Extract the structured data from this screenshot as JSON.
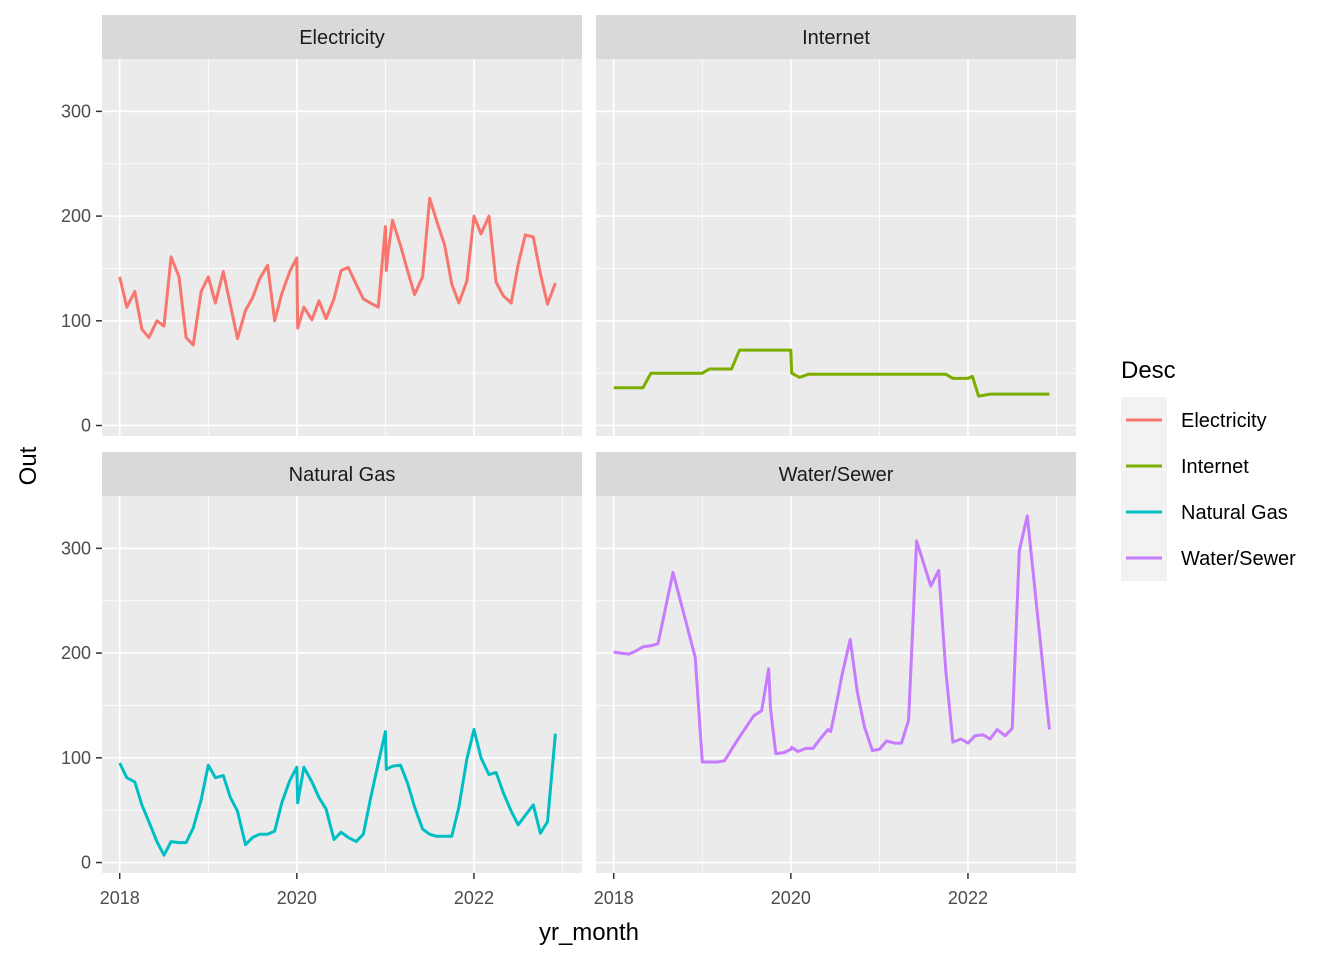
{
  "chart_data": {
    "type": "line",
    "xlabel": "yr_month",
    "ylabel": "Out",
    "legend_title": "Desc",
    "legend_position": "right",
    "grid": true,
    "xlim": [
      2017.8,
      2023.22
    ],
    "ylim": [
      -10,
      350
    ],
    "x_ticks": [
      2018,
      2020,
      2022
    ],
    "x_tick_labels": [
      "2018",
      "2020",
      "2022"
    ],
    "y_ticks": [
      0,
      100,
      200,
      300
    ],
    "y_tick_labels": [
      "0",
      "100",
      "200",
      "300"
    ],
    "colors": {
      "panel_bg": "#ebebeb",
      "strip_bg": "#d9d9d9",
      "grid": "#ffffff",
      "tick": "#333333"
    },
    "series": [
      {
        "name": "Electricity",
        "color": "#f8766d",
        "x": [
          2018.0,
          2018.08,
          2018.17,
          2018.25,
          2018.33,
          2018.42,
          2018.5,
          2018.58,
          2018.67,
          2018.75,
          2018.83,
          2018.92,
          2019.0,
          2019.08,
          2019.17,
          2019.25,
          2019.33,
          2019.42,
          2019.5,
          2019.58,
          2019.67,
          2019.75,
          2019.83,
          2019.92,
          2020.0,
          2020.01,
          2020.08,
          2020.17,
          2020.25,
          2020.33,
          2020.42,
          2020.5,
          2020.58,
          2020.67,
          2020.75,
          2020.83,
          2020.92,
          2021.0,
          2021.01,
          2021.03,
          2021.08,
          2021.17,
          2021.25,
          2021.33,
          2021.42,
          2021.5,
          2021.58,
          2021.67,
          2021.75,
          2021.83,
          2021.92,
          2022.0,
          2022.08,
          2022.17,
          2022.25,
          2022.33,
          2022.42,
          2022.5,
          2022.58,
          2022.67,
          2022.75,
          2022.83,
          2022.92
        ],
        "y": [
          142,
          113,
          128,
          92,
          84,
          100,
          95,
          161,
          142,
          84,
          77,
          128,
          142,
          117,
          147,
          115,
          83,
          110,
          122,
          140,
          153,
          100,
          126,
          147,
          160,
          93,
          113,
          101,
          119,
          102,
          121,
          148,
          151,
          135,
          121,
          117,
          113,
          190,
          148,
          165,
          196,
          172,
          148,
          125,
          142,
          217,
          195,
          172,
          135,
          117,
          138,
          200,
          183,
          200,
          137,
          124,
          117,
          154,
          182,
          180,
          145,
          116,
          136
        ]
      },
      {
        "name": "Internet",
        "color": "#7cae00",
        "x": [
          2018.0,
          2018.33,
          2018.42,
          2019.0,
          2019.08,
          2019.33,
          2019.42,
          2019.5,
          2020.0,
          2020.01,
          2020.1,
          2020.2,
          2021.75,
          2021.83,
          2022.0,
          2022.05,
          2022.12,
          2022.25,
          2022.92
        ],
        "y": [
          36,
          36,
          50,
          50,
          54,
          54,
          72,
          72,
          72,
          50,
          46,
          49,
          49,
          45,
          45,
          47,
          28,
          30,
          30
        ]
      },
      {
        "name": "Natural Gas",
        "color": "#00bfc4",
        "x": [
          2018.0,
          2018.08,
          2018.17,
          2018.25,
          2018.33,
          2018.42,
          2018.5,
          2018.58,
          2018.67,
          2018.75,
          2018.83,
          2018.92,
          2019.0,
          2019.08,
          2019.17,
          2019.25,
          2019.33,
          2019.42,
          2019.5,
          2019.58,
          2019.67,
          2019.75,
          2019.83,
          2019.92,
          2020.0,
          2020.01,
          2020.08,
          2020.17,
          2020.25,
          2020.33,
          2020.42,
          2020.5,
          2020.58,
          2020.67,
          2020.75,
          2020.83,
          2020.92,
          2021.0,
          2021.01,
          2021.08,
          2021.17,
          2021.25,
          2021.33,
          2021.42,
          2021.5,
          2021.58,
          2021.67,
          2021.75,
          2021.83,
          2021.92,
          2022.0,
          2022.08,
          2022.17,
          2022.25,
          2022.33,
          2022.42,
          2022.5,
          2022.58,
          2022.67,
          2022.75,
          2022.83,
          2022.92
        ],
        "y": [
          95,
          81,
          77,
          55,
          39,
          20,
          7,
          20,
          19,
          19,
          33,
          60,
          93,
          81,
          83,
          62,
          49,
          17,
          24,
          27,
          27,
          30,
          57,
          78,
          91,
          57,
          91,
          77,
          62,
          51,
          22,
          29,
          24,
          20,
          27,
          60,
          95,
          125,
          89,
          92,
          93,
          76,
          53,
          32,
          27,
          25,
          25,
          25,
          53,
          99,
          127,
          100,
          84,
          86,
          67,
          49,
          36,
          45,
          55,
          28,
          39,
          123
        ]
      },
      {
        "name": "Water/Sewer",
        "color": "#c77cff",
        "x": [
          2018.0,
          2018.08,
          2018.17,
          2018.25,
          2018.33,
          2018.42,
          2018.5,
          2018.67,
          2018.92,
          2019.0,
          2019.08,
          2019.17,
          2019.25,
          2019.33,
          2019.42,
          2019.58,
          2019.67,
          2019.75,
          2019.77,
          2019.83,
          2019.92,
          2020.0,
          2020.01,
          2020.08,
          2020.17,
          2020.25,
          2020.33,
          2020.42,
          2020.45,
          2020.5,
          2020.58,
          2020.67,
          2020.75,
          2020.83,
          2020.92,
          2021.0,
          2021.08,
          2021.17,
          2021.25,
          2021.33,
          2021.42,
          2021.58,
          2021.67,
          2021.75,
          2021.83,
          2021.92,
          2022.0,
          2022.08,
          2022.17,
          2022.25,
          2022.33,
          2022.42,
          2022.5,
          2022.58,
          2022.67,
          2022.92
        ],
        "y": [
          201,
          200,
          199,
          202,
          206,
          207,
          209,
          277,
          196,
          96,
          96,
          96,
          97,
          108,
          120,
          140,
          145,
          185,
          147,
          104,
          105,
          108,
          110,
          106,
          109,
          109,
          118,
          127,
          125,
          145,
          180,
          213,
          163,
          130,
          107,
          108,
          116,
          114,
          114,
          136,
          307,
          264,
          279,
          183,
          115,
          118,
          114,
          121,
          122,
          118,
          127,
          121,
          128,
          298,
          331,
          127
        ]
      }
    ],
    "panels": [
      {
        "title": "Electricity",
        "series_index": 0
      },
      {
        "title": "Internet",
        "series_index": 1
      },
      {
        "title": "Natural Gas",
        "series_index": 2
      },
      {
        "title": "Water/Sewer",
        "series_index": 3
      }
    ]
  }
}
